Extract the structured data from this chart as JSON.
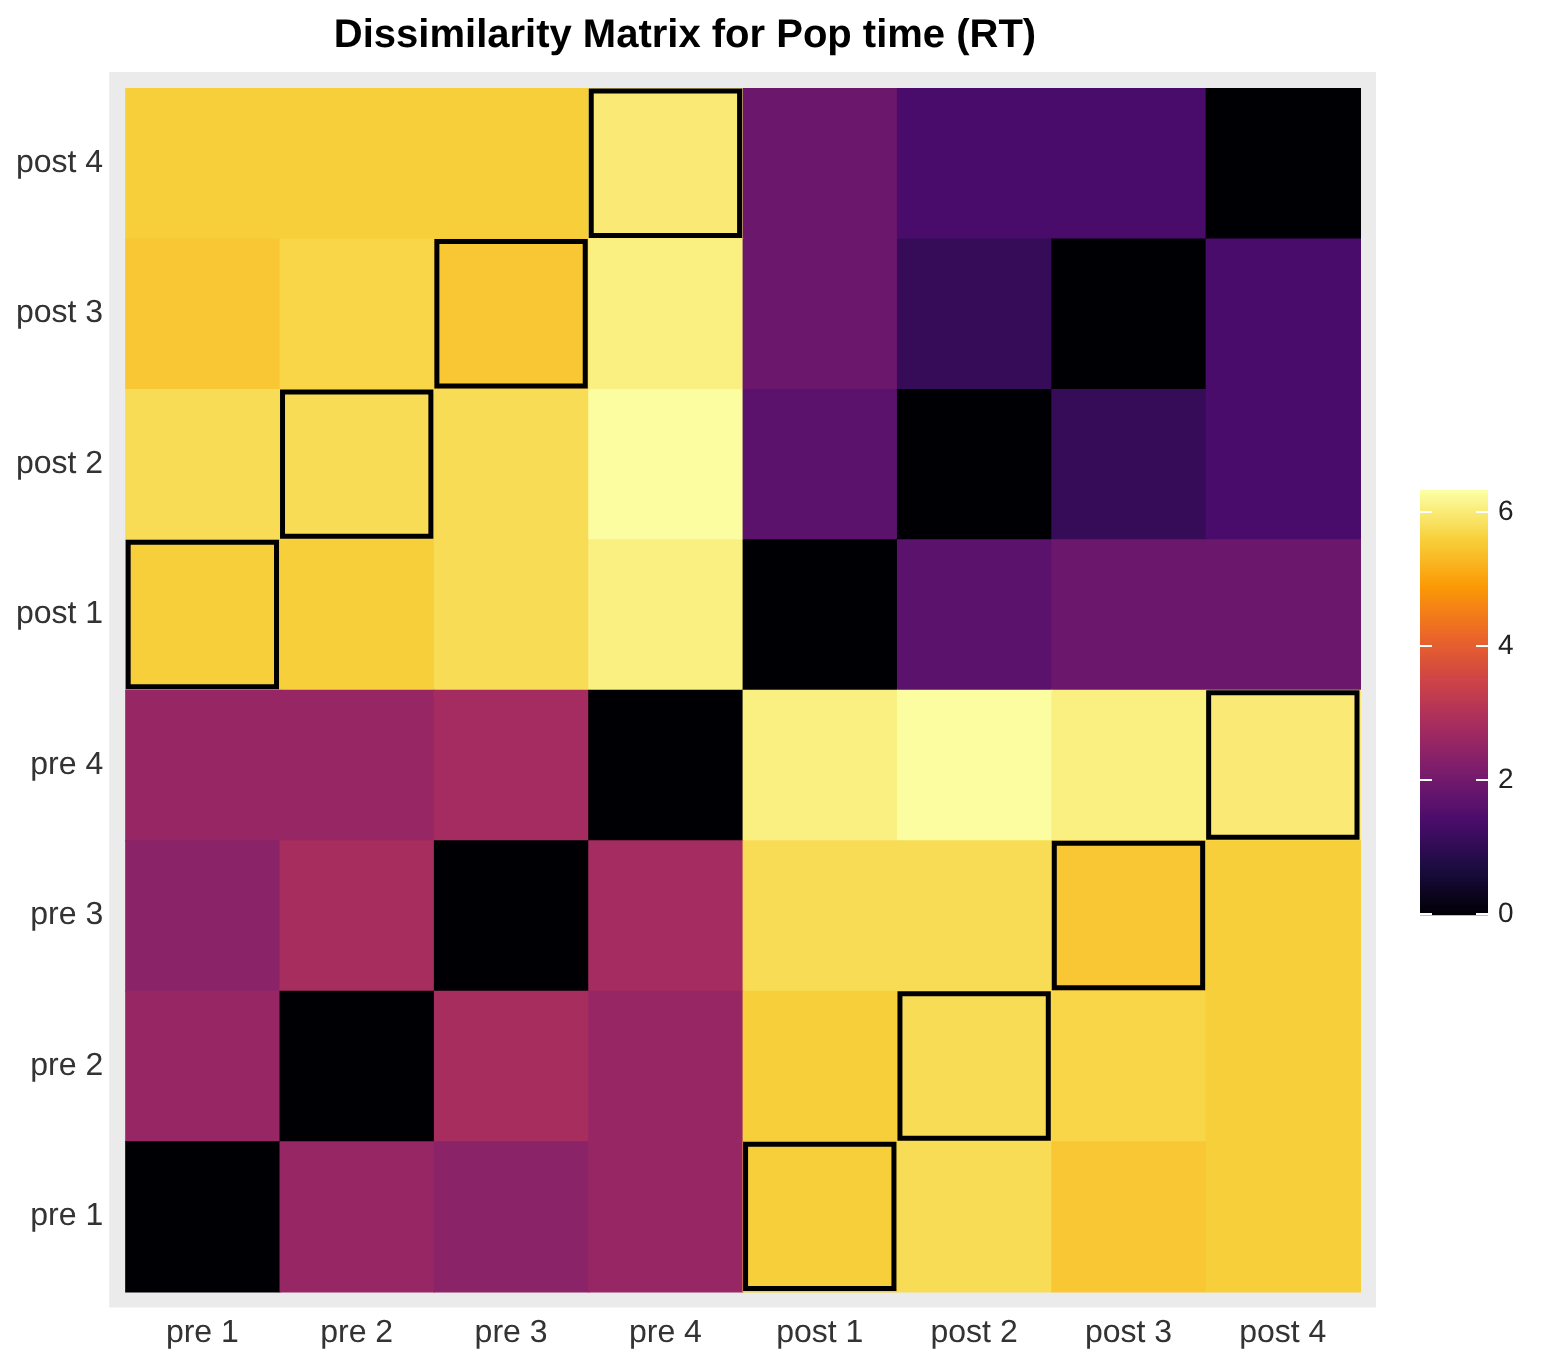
{
  "chart_data": {
    "type": "heatmap",
    "title": "Dissimilarity Matrix for Pop time (RT)",
    "categories": [
      "pre 1",
      "pre 2",
      "pre 3",
      "pre 4",
      "post 1",
      "post 2",
      "post 3",
      "post 4"
    ],
    "y_categories": [
      "post 4",
      "post 3",
      "post 2",
      "post 1",
      "pre 4",
      "pre 3",
      "pre 2",
      "pre 1"
    ],
    "cells": [
      [
        5.6,
        5.6,
        5.6,
        6.0,
        1.9,
        1.4,
        1.4,
        0
      ],
      [
        5.5,
        5.7,
        5.5,
        6.1,
        1.9,
        1.1,
        0,
        1.4
      ],
      [
        5.8,
        5.8,
        5.8,
        6.3,
        1.65,
        0,
        1.1,
        1.4
      ],
      [
        5.6,
        5.6,
        5.8,
        6.1,
        0,
        1.65,
        1.9,
        1.9
      ],
      [
        2.6,
        2.6,
        2.8,
        0,
        6.1,
        6.3,
        6.1,
        6.0
      ],
      [
        2.4,
        2.85,
        0,
        2.8,
        5.8,
        5.8,
        5.5,
        5.6
      ],
      [
        2.6,
        0,
        2.85,
        2.6,
        5.6,
        5.8,
        5.7,
        5.6
      ],
      [
        0,
        2.6,
        2.4,
        2.6,
        5.6,
        5.8,
        5.5,
        5.6
      ]
    ],
    "clim": [
      0,
      6.33
    ],
    "cticks": [
      0,
      2,
      4,
      6
    ]
  }
}
